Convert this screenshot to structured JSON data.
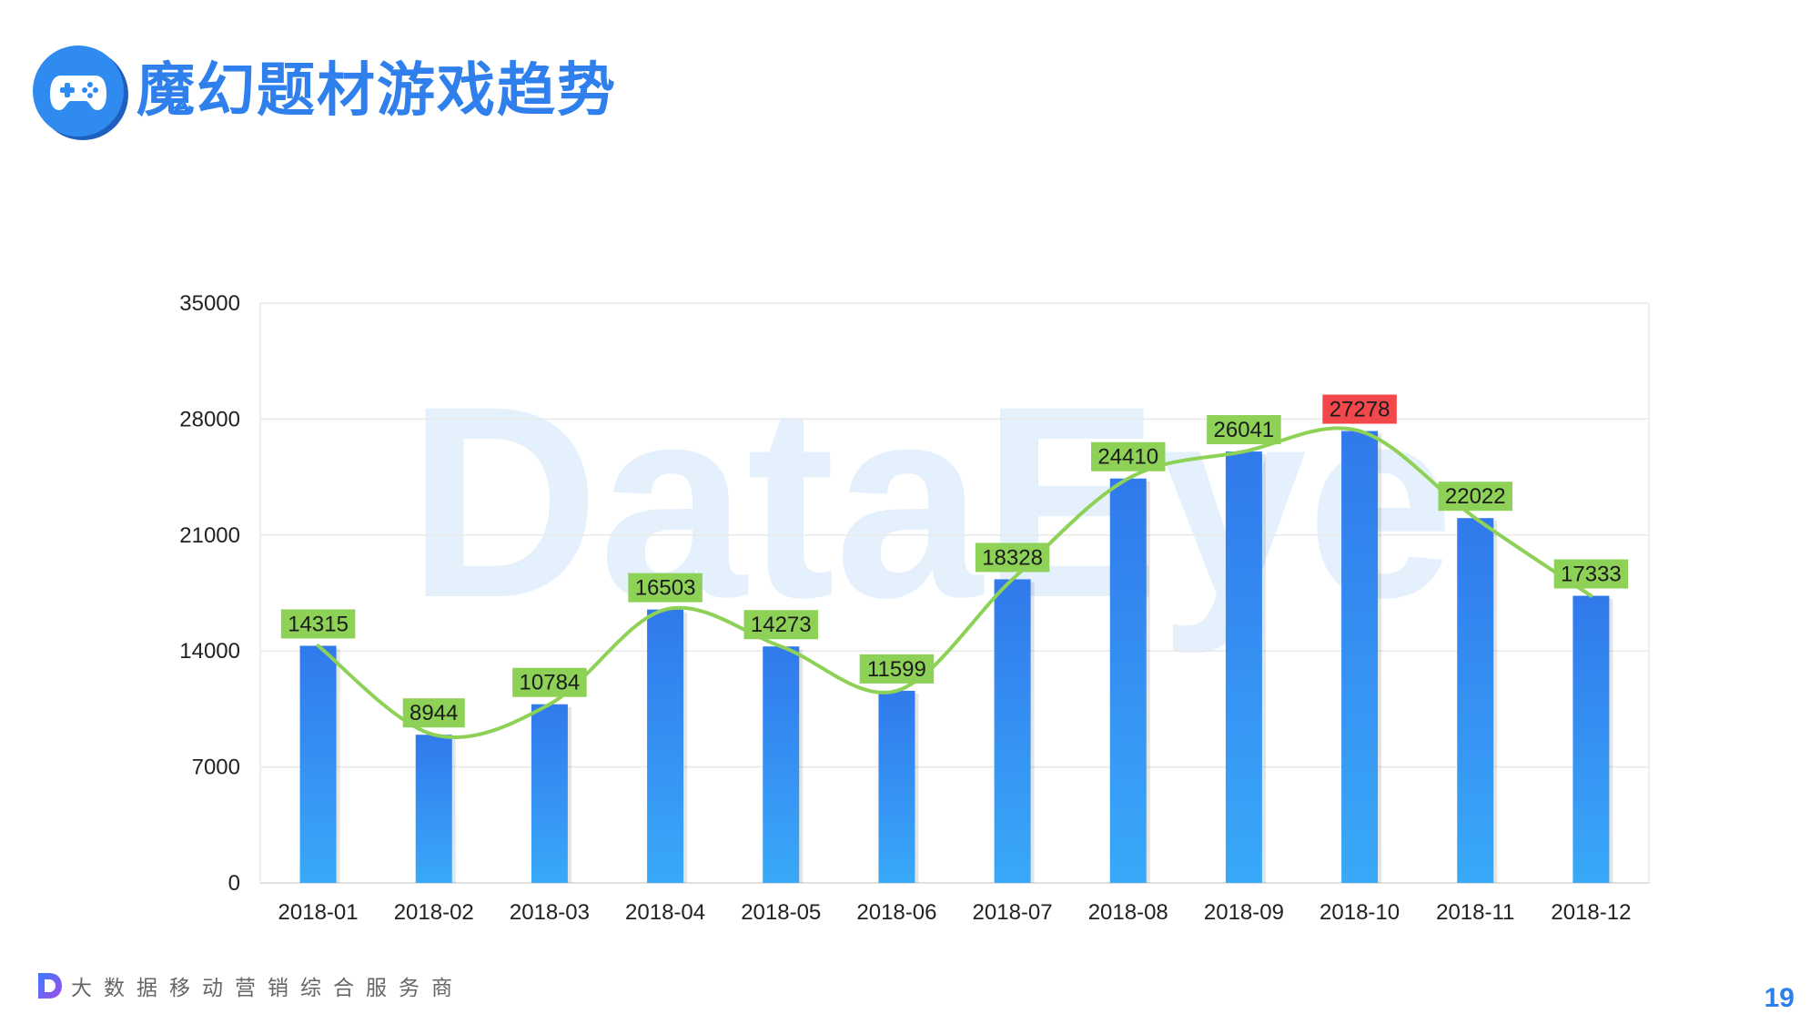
{
  "header": {
    "title": "魔幻题材游戏趋势",
    "icon": "gamepad-icon"
  },
  "watermark": "DataEye",
  "footer": {
    "tagline": "大数据移动营销综合服务商",
    "logo_icon": "dataeye-d-logo-icon",
    "page_number": "19"
  },
  "colors": {
    "bar_top": "#3179ec",
    "bar_bottom": "#39a9f8",
    "line": "#8ed157",
    "label_bg": "#8ed157",
    "label_peak_bg": "#f2484b",
    "accent": "#2f80ed"
  },
  "chart_data": {
    "type": "bar",
    "title": "",
    "xlabel": "",
    "ylabel": "",
    "categories": [
      "2018-01",
      "2018-02",
      "2018-03",
      "2018-04",
      "2018-05",
      "2018-06",
      "2018-07",
      "2018-08",
      "2018-09",
      "2018-10",
      "2018-11",
      "2018-12"
    ],
    "values": [
      14315,
      8944,
      10784,
      16503,
      14273,
      11599,
      18328,
      24410,
      26041,
      27278,
      22022,
      17333
    ],
    "overlay": "smoothed line through bar values",
    "ylim": [
      0,
      35000
    ],
    "yticks": [
      0,
      7000,
      14000,
      21000,
      28000,
      35000
    ],
    "grid": true,
    "legend": "none",
    "highlighted_value": 27278
  }
}
